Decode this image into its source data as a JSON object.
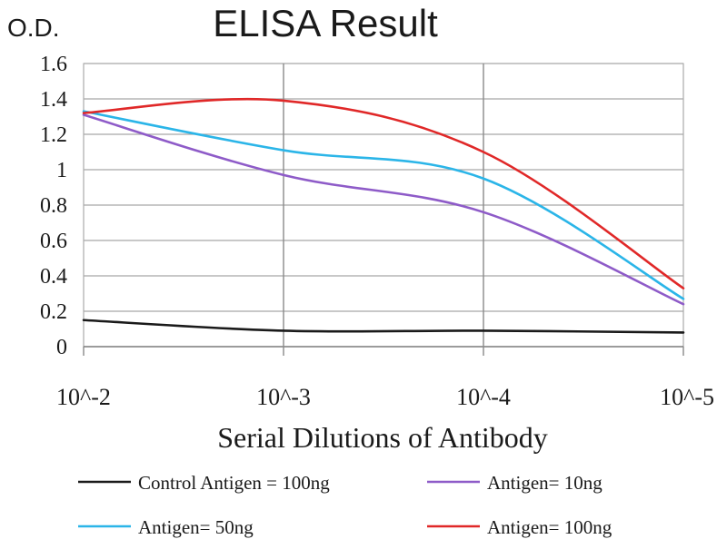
{
  "chart_data": {
    "type": "line",
    "title": "ELISA Result",
    "ylabel": "O.D.",
    "xlabel": "Serial Dilutions of Antibody",
    "categories": [
      "10^-2",
      "10^-3",
      "10^-4",
      "10^-5"
    ],
    "ylim": [
      0,
      1.6
    ],
    "yticks": [
      "0",
      "0.2",
      "0.4",
      "0.6",
      "0.8",
      "1",
      "1.2",
      "1.4",
      "1.6"
    ],
    "grid": true,
    "legend_position": "bottom",
    "series": [
      {
        "name": "Control Antigen = 100ng",
        "color": "#1a1a1a",
        "values": [
          0.15,
          0.09,
          0.09,
          0.08
        ]
      },
      {
        "name": "Antigen= 10ng",
        "color": "#8e5bc8",
        "values": [
          1.31,
          0.97,
          0.76,
          0.24
        ]
      },
      {
        "name": "Antigen= 50ng",
        "color": "#2bb5e8",
        "values": [
          1.33,
          1.11,
          0.95,
          0.27
        ]
      },
      {
        "name": "Antigen= 100ng",
        "color": "#e02828",
        "values": [
          1.32,
          1.39,
          1.1,
          0.33
        ]
      }
    ]
  }
}
